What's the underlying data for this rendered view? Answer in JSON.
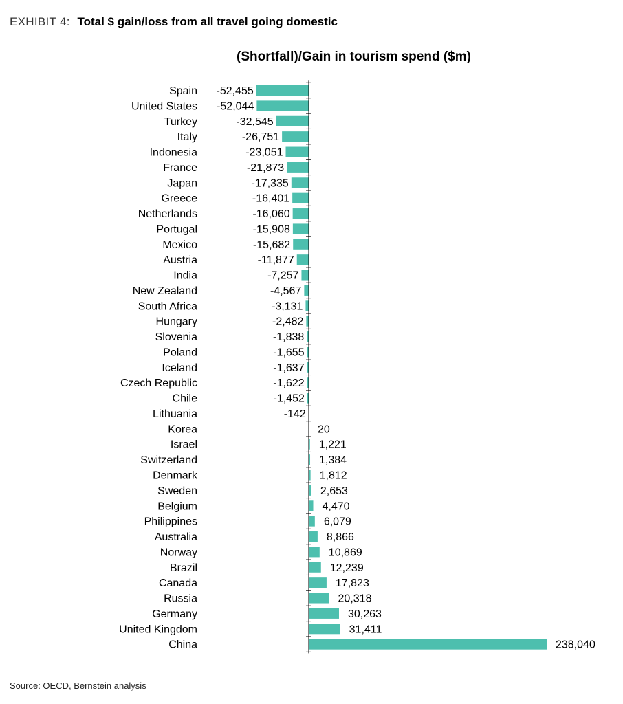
{
  "header": {
    "exhibit_label": "EXHIBIT 4:",
    "exhibit_title": "Total $ gain/loss from all travel going domestic"
  },
  "footer": {
    "source": "Source: OECD, Bernstein analysis"
  },
  "chart_data": {
    "type": "bar",
    "orientation": "horizontal",
    "title": "(Shortfall)/Gain in tourism spend ($m)",
    "xlabel": "",
    "ylabel": "",
    "grid": false,
    "legend": "none",
    "bar_color": "#4dbfae",
    "categories": [
      "Spain",
      "United States",
      "Turkey",
      "Italy",
      "Indonesia",
      "France",
      "Japan",
      "Greece",
      "Netherlands",
      "Portugal",
      "Mexico",
      "Austria",
      "India",
      "New Zealand",
      "South Africa",
      "Hungary",
      "Slovenia",
      "Poland",
      "Iceland",
      "Czech Republic",
      "Chile",
      "Lithuania",
      "Korea",
      "Israel",
      "Switzerland",
      "Denmark",
      "Sweden",
      "Belgium",
      "Philippines",
      "Australia",
      "Norway",
      "Brazil",
      "Canada",
      "Russia",
      "Germany",
      "United Kingdom",
      "China"
    ],
    "values": [
      -52455,
      -52044,
      -32545,
      -26751,
      -23051,
      -21873,
      -17335,
      -16401,
      -16060,
      -15908,
      -15682,
      -11877,
      -7257,
      -4567,
      -3131,
      -2482,
      -1838,
      -1655,
      -1637,
      -1622,
      -1452,
      -142,
      20,
      1221,
      1384,
      1812,
      2653,
      4470,
      6079,
      8866,
      10869,
      12239,
      17823,
      20318,
      30263,
      31411,
      238040
    ],
    "value_labels": [
      "-52,455",
      "-52,044",
      "-32,545",
      "-26,751",
      "-23,051",
      "-21,873",
      "-17,335",
      "-16,401",
      "-16,060",
      "-15,908",
      "-15,682",
      "-11,877",
      "-7,257",
      "-4,567",
      "-3,131",
      "-2,482",
      "-1,838",
      "-1,655",
      "-1,637",
      "-1,622",
      "-1,452",
      "-142",
      "20",
      "1,221",
      "1,384",
      "1,812",
      "2,653",
      "4,470",
      "6,079",
      "8,866",
      "10,869",
      "12,239",
      "17,823",
      "20,318",
      "30,263",
      "31,411",
      "238,040"
    ]
  }
}
